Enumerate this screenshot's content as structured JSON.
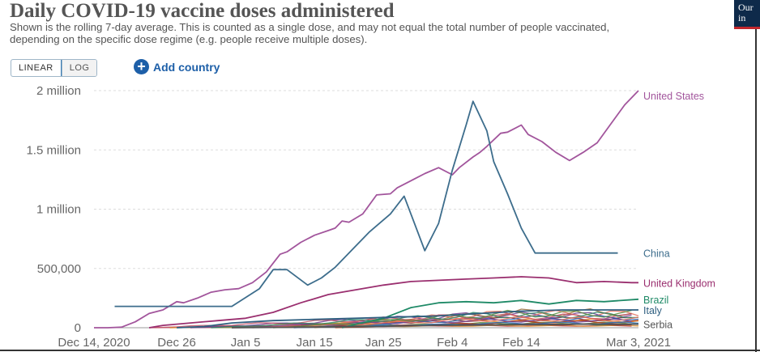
{
  "title": "Daily COVID-19 vaccine doses administered",
  "subtitle": "Shown is the rolling 7-day average. This is counted as a single dose, and may not equal the total number of people vaccinated, depending on the specific dose regime (e.g. people receive multiple doses).",
  "controls": {
    "linear_label": "LINEAR",
    "log_label": "LOG",
    "add_country_label": "Add country"
  },
  "logo": {
    "line1": "Our",
    "line2": "in"
  },
  "chart_data": {
    "type": "line",
    "title": "Daily COVID-19 vaccine doses administered",
    "ylim": [
      0,
      2000000
    ],
    "y_ticks": [
      {
        "value": 0,
        "label": "0"
      },
      {
        "value": 500000,
        "label": "500,000"
      },
      {
        "value": 1000000,
        "label": "1 million"
      },
      {
        "value": 1500000,
        "label": "1.5 million"
      },
      {
        "value": 2000000,
        "label": "2 million"
      }
    ],
    "x_ticks": [
      {
        "day": 0,
        "label": "Dec 14, 2020"
      },
      {
        "day": 12,
        "label": "Dec 26"
      },
      {
        "day": 22,
        "label": "Jan 5"
      },
      {
        "day": 32,
        "label": "Jan 15"
      },
      {
        "day": 42,
        "label": "Jan 25"
      },
      {
        "day": 52,
        "label": "Feb 4"
      },
      {
        "day": 62,
        "label": "Feb 14"
      },
      {
        "day": 79,
        "label": "Mar 3, 2021"
      }
    ],
    "grid": true,
    "series": [
      {
        "name": "United States",
        "color": "#a2559c",
        "label_value": 1960000,
        "points": [
          [
            0,
            0
          ],
          [
            2,
            0
          ],
          [
            4,
            5000
          ],
          [
            6,
            50000
          ],
          [
            8,
            120000
          ],
          [
            10,
            150000
          ],
          [
            12,
            220000
          ],
          [
            13,
            210000
          ],
          [
            15,
            250000
          ],
          [
            17,
            300000
          ],
          [
            19,
            320000
          ],
          [
            21,
            330000
          ],
          [
            23,
            380000
          ],
          [
            25,
            470000
          ],
          [
            27,
            620000
          ],
          [
            28,
            640000
          ],
          [
            30,
            720000
          ],
          [
            32,
            780000
          ],
          [
            34,
            820000
          ],
          [
            35,
            840000
          ],
          [
            36,
            900000
          ],
          [
            37,
            890000
          ],
          [
            39,
            960000
          ],
          [
            41,
            1120000
          ],
          [
            43,
            1130000
          ],
          [
            44,
            1180000
          ],
          [
            46,
            1240000
          ],
          [
            48,
            1300000
          ],
          [
            50,
            1350000
          ],
          [
            52,
            1290000
          ],
          [
            53,
            1350000
          ],
          [
            55,
            1440000
          ],
          [
            56,
            1480000
          ],
          [
            57,
            1530000
          ],
          [
            59,
            1640000
          ],
          [
            60,
            1650000
          ],
          [
            61,
            1680000
          ],
          [
            62,
            1710000
          ],
          [
            63,
            1630000
          ],
          [
            65,
            1570000
          ],
          [
            67,
            1480000
          ],
          [
            69,
            1410000
          ],
          [
            71,
            1480000
          ],
          [
            73,
            1560000
          ],
          [
            75,
            1720000
          ],
          [
            77,
            1880000
          ],
          [
            79,
            2000000
          ]
        ]
      },
      {
        "name": "China",
        "color": "#3d6d8c",
        "label_value": 630000,
        "points": [
          [
            3,
            180000
          ],
          [
            20,
            180000
          ],
          [
            24,
            330000
          ],
          [
            26,
            490000
          ],
          [
            28,
            490000
          ],
          [
            31,
            360000
          ],
          [
            33,
            420000
          ],
          [
            35,
            510000
          ],
          [
            38,
            690000
          ],
          [
            40,
            810000
          ],
          [
            43,
            960000
          ],
          [
            45,
            1110000
          ],
          [
            48,
            650000
          ],
          [
            50,
            880000
          ],
          [
            52,
            1330000
          ],
          [
            54,
            1710000
          ],
          [
            55,
            1910000
          ],
          [
            57,
            1660000
          ],
          [
            58,
            1400000
          ],
          [
            60,
            1130000
          ],
          [
            62,
            840000
          ],
          [
            64,
            630000
          ],
          [
            67,
            630000
          ],
          [
            70,
            630000
          ],
          [
            76,
            630000
          ]
        ]
      },
      {
        "name": "United Kingdom",
        "color": "#9a2f6f",
        "label_value": 380000,
        "points": [
          [
            8,
            0
          ],
          [
            10,
            20000
          ],
          [
            14,
            40000
          ],
          [
            18,
            60000
          ],
          [
            22,
            80000
          ],
          [
            26,
            130000
          ],
          [
            30,
            210000
          ],
          [
            34,
            280000
          ],
          [
            38,
            320000
          ],
          [
            42,
            360000
          ],
          [
            46,
            390000
          ],
          [
            50,
            400000
          ],
          [
            54,
            410000
          ],
          [
            58,
            420000
          ],
          [
            62,
            430000
          ],
          [
            66,
            420000
          ],
          [
            70,
            380000
          ],
          [
            74,
            390000
          ],
          [
            78,
            380000
          ],
          [
            79,
            380000
          ]
        ]
      },
      {
        "name": "Brazil",
        "color": "#1f8a67",
        "label_value": 240000,
        "points": [
          [
            36,
            0
          ],
          [
            38,
            30000
          ],
          [
            42,
            80000
          ],
          [
            46,
            170000
          ],
          [
            50,
            210000
          ],
          [
            54,
            220000
          ],
          [
            58,
            210000
          ],
          [
            62,
            230000
          ],
          [
            66,
            200000
          ],
          [
            70,
            230000
          ],
          [
            74,
            220000
          ],
          [
            79,
            240000
          ]
        ]
      },
      {
        "name": "Italy",
        "color": "#2f5f80",
        "label_value": 150000,
        "points": [
          [
            12,
            0
          ],
          [
            16,
            10000
          ],
          [
            20,
            40000
          ],
          [
            26,
            60000
          ],
          [
            32,
            70000
          ],
          [
            38,
            80000
          ],
          [
            44,
            90000
          ],
          [
            50,
            100000
          ],
          [
            56,
            120000
          ],
          [
            62,
            140000
          ],
          [
            68,
            150000
          ],
          [
            74,
            150000
          ],
          [
            79,
            150000
          ]
        ]
      },
      {
        "name": "Serbia",
        "color": "#555555",
        "label_value": 30000,
        "points": [
          [
            20,
            0
          ],
          [
            30,
            5000
          ],
          [
            40,
            10000
          ],
          [
            50,
            20000
          ],
          [
            60,
            25000
          ],
          [
            70,
            30000
          ],
          [
            79,
            30000
          ]
        ]
      }
    ]
  }
}
